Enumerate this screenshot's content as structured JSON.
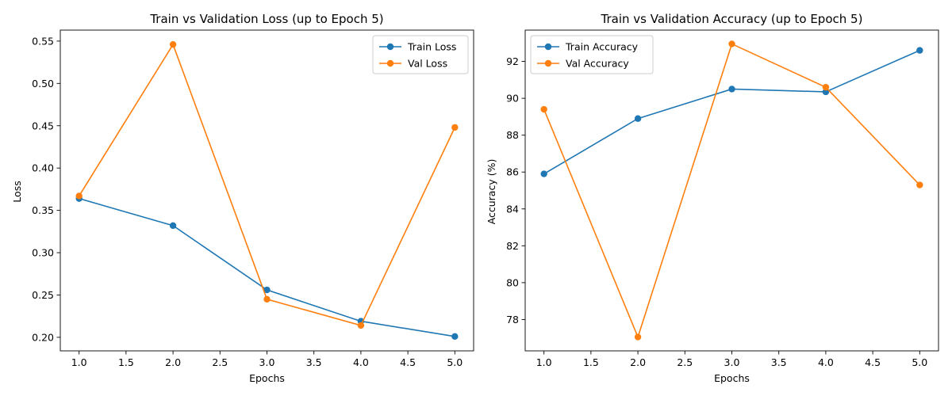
{
  "chart_data": [
    {
      "type": "line",
      "title": "Train vs Validation Loss (up to Epoch 5)",
      "xlabel": "Epochs",
      "ylabel": "Loss",
      "xlim": [
        0.8,
        5.2
      ],
      "ylim": [
        0.184,
        0.563
      ],
      "xticks": [
        1.0,
        1.5,
        2.0,
        2.5,
        3.0,
        3.5,
        4.0,
        4.5,
        5.0
      ],
      "xtick_labels": [
        "1.0",
        "1.5",
        "2.0",
        "2.5",
        "3.0",
        "3.5",
        "4.0",
        "4.5",
        "5.0"
      ],
      "yticks": [
        0.2,
        0.25,
        0.3,
        0.35,
        0.4,
        0.45,
        0.5,
        0.55
      ],
      "ytick_labels": [
        "0.20",
        "0.25",
        "0.30",
        "0.35",
        "0.40",
        "0.45",
        "0.50",
        "0.55"
      ],
      "grid": false,
      "legend_position": "top-right",
      "x": [
        1,
        2,
        3,
        4,
        5
      ],
      "series": [
        {
          "name": "Train Loss",
          "color": "#1f77b4",
          "values": [
            0.364,
            0.332,
            0.256,
            0.219,
            0.201
          ]
        },
        {
          "name": "Val Loss",
          "color": "#ff7f0e",
          "values": [
            0.367,
            0.546,
            0.245,
            0.214,
            0.448
          ]
        }
      ]
    },
    {
      "type": "line",
      "title": "Train vs Validation Accuracy (up to Epoch 5)",
      "xlabel": "Epochs",
      "ylabel": "Accuracy (%)",
      "xlim": [
        0.8,
        5.2
      ],
      "ylim": [
        76.3,
        93.7
      ],
      "xticks": [
        1.0,
        1.5,
        2.0,
        2.5,
        3.0,
        3.5,
        4.0,
        4.5,
        5.0
      ],
      "xtick_labels": [
        "1.0",
        "1.5",
        "2.0",
        "2.5",
        "3.0",
        "3.5",
        "4.0",
        "4.5",
        "5.0"
      ],
      "yticks": [
        78,
        80,
        82,
        84,
        86,
        88,
        90,
        92
      ],
      "ytick_labels": [
        "78",
        "80",
        "82",
        "84",
        "86",
        "88",
        "90",
        "92"
      ],
      "grid": false,
      "legend_position": "top-left",
      "x": [
        1,
        2,
        3,
        4,
        5
      ],
      "series": [
        {
          "name": "Train Accuracy",
          "color": "#1f77b4",
          "values": [
            85.9,
            88.9,
            90.5,
            90.35,
            92.6
          ]
        },
        {
          "name": "Val Accuracy",
          "color": "#ff7f0e",
          "values": [
            89.4,
            77.05,
            92.95,
            90.6,
            85.3
          ]
        }
      ]
    }
  ]
}
